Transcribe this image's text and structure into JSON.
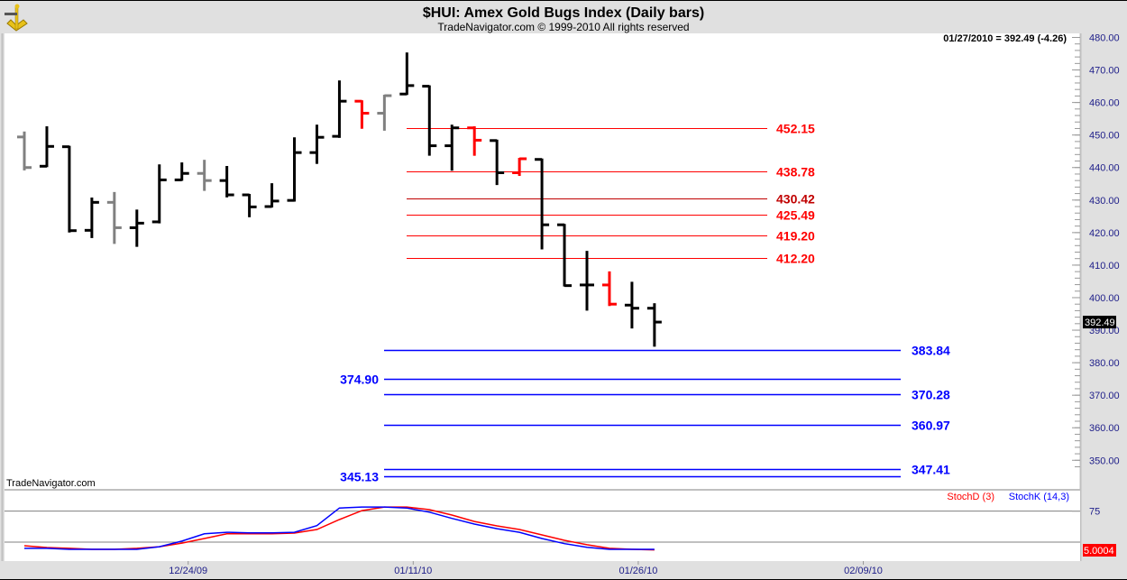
{
  "header": {
    "title": "$HUI:  Amex Gold Bugs Index  (Daily bars)",
    "subtitle": "TradeNavigator.com © 1999-2010 All rights reserved",
    "logo_icon": "sextant-icon"
  },
  "readout": "01/27/2010 = 392.49 (-4.26)",
  "watermark": "TradeNavigator.com",
  "last_price_label": "392.49",
  "stoch_last_label": "5.0004",
  "colors": {
    "up": "#000000",
    "gray": "#808080",
    "red": "#ff0000",
    "darkred": "#c00000",
    "blue": "#0000ff",
    "axis": "#20208a"
  },
  "chart_data": [
    {
      "type": "ohlc",
      "title": "$HUI:  Amex Gold Bugs Index  (Daily bars)",
      "ylim": [
        340,
        480
      ],
      "y_ticks": [
        "480.00",
        "470.00",
        "460.00",
        "450.00",
        "440.00",
        "430.00",
        "420.00",
        "410.00",
        "400.00",
        "390.00",
        "380.00",
        "370.00",
        "360.00",
        "350.00"
      ],
      "y_tick_values": [
        480,
        470,
        460,
        450,
        440,
        430,
        420,
        410,
        400,
        390,
        380,
        370,
        360,
        350
      ],
      "x_ticks": [
        {
          "label": "12/24/09",
          "index": 7
        },
        {
          "label": "01/11/10",
          "index": 17
        },
        {
          "label": "01/26/10",
          "index": 27
        },
        {
          "label": "02/09/10",
          "index": 37
        }
      ],
      "bars": [
        {
          "o": 449.4,
          "h": 450.8,
          "l": 439.4,
          "c": 440.0,
          "color": "gray"
        },
        {
          "o": 440.4,
          "h": 452.4,
          "l": 440.4,
          "c": 446.5,
          "color": "black"
        },
        {
          "o": 446.4,
          "h": 446.4,
          "l": 420.3,
          "c": 420.6,
          "color": "black"
        },
        {
          "o": 420.7,
          "h": 430.5,
          "l": 418.6,
          "c": 429.3,
          "color": "black"
        },
        {
          "o": 429.3,
          "h": 432.2,
          "l": 416.8,
          "c": 421.5,
          "color": "gray"
        },
        {
          "o": 421.5,
          "h": 426.8,
          "l": 415.9,
          "c": 422.9,
          "color": "black"
        },
        {
          "o": 423.3,
          "h": 440.7,
          "l": 423.1,
          "c": 436.2,
          "color": "black"
        },
        {
          "o": 436.2,
          "h": 441.3,
          "l": 436.2,
          "c": 438.2,
          "color": "black"
        },
        {
          "o": 438.2,
          "h": 442.1,
          "l": 433.1,
          "c": 436.0,
          "color": "gray"
        },
        {
          "o": 436.0,
          "h": 440.2,
          "l": 431.1,
          "c": 431.6,
          "color": "black"
        },
        {
          "o": 431.6,
          "h": 431.6,
          "l": 425.0,
          "c": 427.9,
          "color": "black"
        },
        {
          "o": 428.0,
          "h": 434.9,
          "l": 428.0,
          "c": 429.7,
          "color": "black"
        },
        {
          "o": 429.9,
          "h": 449.0,
          "l": 429.8,
          "c": 444.6,
          "color": "black"
        },
        {
          "o": 444.6,
          "h": 452.9,
          "l": 441.4,
          "c": 449.3,
          "color": "black"
        },
        {
          "o": 449.6,
          "h": 466.5,
          "l": 449.4,
          "c": 460.4,
          "color": "black"
        },
        {
          "o": 460.4,
          "h": 460.4,
          "l": 452.2,
          "c": 456.7,
          "color": "red"
        },
        {
          "o": 456.7,
          "h": 462.1,
          "l": 451.6,
          "c": 462.1,
          "color": "gray"
        },
        {
          "o": 462.6,
          "h": 475.1,
          "l": 462.6,
          "c": 465.2,
          "color": "black"
        },
        {
          "o": 465.0,
          "h": 465.0,
          "l": 443.9,
          "c": 446.7,
          "color": "black"
        },
        {
          "o": 446.7,
          "h": 452.9,
          "l": 439.3,
          "c": 452.2,
          "color": "black"
        },
        {
          "o": 452.2,
          "h": 452.4,
          "l": 443.9,
          "c": 448.4,
          "color": "red"
        },
        {
          "o": 448.3,
          "h": 448.3,
          "l": 434.9,
          "c": 438.4,
          "color": "black"
        },
        {
          "o": 438.4,
          "h": 442.7,
          "l": 437.7,
          "c": 442.7,
          "color": "red"
        },
        {
          "o": 442.5,
          "h": 442.5,
          "l": 415.1,
          "c": 422.4,
          "color": "black"
        },
        {
          "o": 422.4,
          "h": 422.4,
          "l": 403.7,
          "c": 403.7,
          "color": "black"
        },
        {
          "o": 403.9,
          "h": 414.1,
          "l": 396.3,
          "c": 403.9,
          "color": "black"
        },
        {
          "o": 403.9,
          "h": 407.8,
          "l": 397.7,
          "c": 398.0,
          "color": "red"
        },
        {
          "o": 397.7,
          "h": 404.6,
          "l": 390.8,
          "c": 396.75,
          "color": "black"
        },
        {
          "o": 396.75,
          "h": 398.0,
          "l": 385.2,
          "c": 392.49,
          "color": "black"
        }
      ],
      "resistance_levels": [
        {
          "label": "452.15",
          "value": 452.15,
          "color": "red"
        },
        {
          "label": "438.78",
          "value": 438.78,
          "color": "red"
        },
        {
          "label": "430.42",
          "value": 430.42,
          "color": "darkred"
        },
        {
          "label": "425.49",
          "value": 425.49,
          "color": "red"
        },
        {
          "label": "419.20",
          "value": 419.2,
          "color": "red"
        },
        {
          "label": "412.20",
          "value": 412.2,
          "color": "red"
        }
      ],
      "support_levels": [
        {
          "label": "383.84",
          "value": 383.84,
          "side": "right"
        },
        {
          "label": "374.90",
          "value": 374.9,
          "side": "left"
        },
        {
          "label": "370.28",
          "value": 370.28,
          "side": "right"
        },
        {
          "label": "360.97",
          "value": 360.97,
          "side": "right"
        },
        {
          "label": "347.41",
          "value": 347.41,
          "side": "right"
        },
        {
          "label": "345.13",
          "value": 345.13,
          "side": "left"
        }
      ]
    },
    {
      "type": "line",
      "title": "Stochastics",
      "ylim": [
        0,
        100
      ],
      "y_ticks": [
        "75"
      ],
      "legend": [
        {
          "name": "StochD (3)",
          "color": "red"
        },
        {
          "name": "StochK (14,3)",
          "color": "blue"
        }
      ],
      "legend_position": "top-right",
      "series": [
        {
          "name": "StochK (14,3)",
          "color": "blue",
          "values": [
            8,
            8,
            6,
            6,
            6,
            6,
            11,
            22,
            36,
            39,
            38,
            38,
            39,
            52,
            86,
            88,
            88,
            86,
            78,
            66,
            55,
            46,
            39,
            27,
            17,
            10,
            6,
            6,
            6
          ]
        },
        {
          "name": "StochD (3)",
          "color": "red",
          "values": [
            13,
            9.5,
            8,
            6,
            6,
            8,
            11,
            18,
            27,
            36,
            36,
            36,
            37.5,
            44.5,
            63.7,
            81,
            88,
            88,
            83,
            72.5,
            60,
            51.5,
            44.5,
            34,
            23.5,
            15,
            8,
            6,
            5
          ]
        }
      ]
    }
  ]
}
